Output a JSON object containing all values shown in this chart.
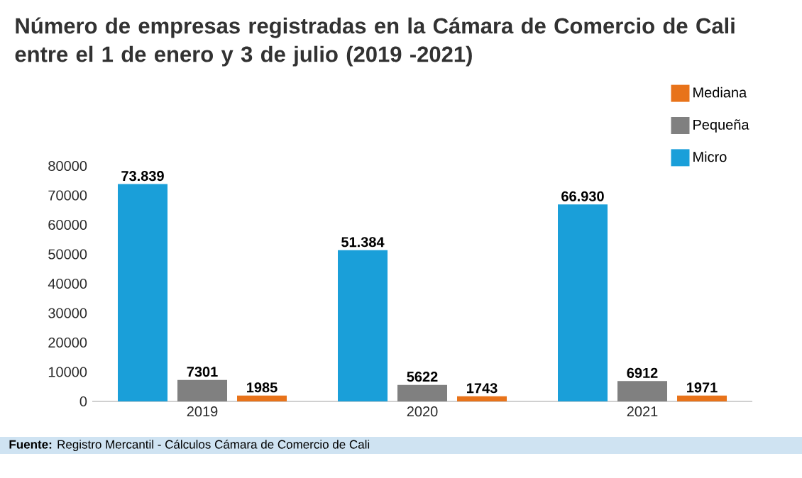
{
  "chart_data": {
    "type": "bar",
    "title": "Número de empresas registradas en la Cámara de Comercio de Cali entre el 1 de enero y 3 de julio (2019 -2021)",
    "categories": [
      "2019",
      "2020",
      "2021"
    ],
    "series": [
      {
        "name": "Micro",
        "color": "#1a9fd9",
        "values": [
          73839,
          51384,
          66930
        ],
        "value_labels": [
          "73.839",
          "51.384",
          "66.930"
        ]
      },
      {
        "name": "Pequeña",
        "color": "#808080",
        "values": [
          7301,
          5622,
          6912
        ],
        "value_labels": [
          "7301",
          "5622",
          "6912"
        ]
      },
      {
        "name": "Mediana",
        "color": "#e8731a",
        "values": [
          1985,
          1743,
          1971
        ],
        "value_labels": [
          "1985",
          "1743",
          "1971"
        ]
      }
    ],
    "ylim": [
      0,
      80000
    ],
    "yticks": [
      0,
      10000,
      20000,
      30000,
      40000,
      50000,
      60000,
      70000,
      80000
    ],
    "legend": "top right",
    "annotations": [
      "**Fuente:** Registro Mercantil - Cálculos Cámara de Comercio de Cali"
    ]
  }
}
